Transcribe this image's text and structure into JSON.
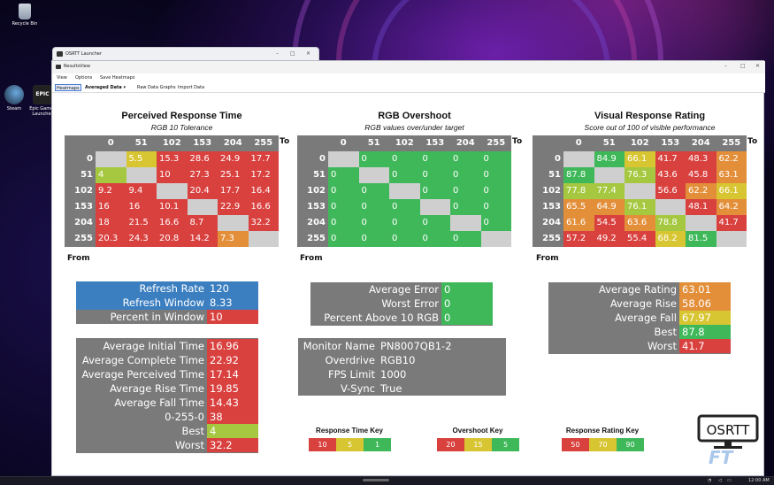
{
  "desktop": {
    "icons": [
      {
        "label": "Recycle Bin",
        "icon": "recycle-bin-icon"
      },
      {
        "label": "Steam",
        "icon": "steam-icon"
      },
      {
        "label": "Epic Games Launcher",
        "icon": "epic-games-icon"
      }
    ],
    "epic_badge": "EPIC"
  },
  "taskbar": {
    "time": "12:00 AM"
  },
  "launcher": {
    "title": "OSRTT Launcher"
  },
  "window": {
    "title": "ResultsView",
    "menu": [
      "View",
      "Options",
      "Save Heatmaps"
    ],
    "toolbar": {
      "heatmaps": "Heatmaps",
      "averaged": "Averaged Data",
      "raw_graphs": "Raw Data Graphs",
      "import": "Import Data"
    }
  },
  "colors": {
    "red": "#d9413f",
    "orange": "#e38f3a",
    "yellow": "#d8c532",
    "lightgreen": "#a5c840",
    "green": "#3fb85a",
    "gray": "#7a7a7a",
    "blue": "#3c7fc0",
    "empty": "#cfcfcf"
  },
  "axis_labels": [
    "0",
    "51",
    "102",
    "153",
    "204",
    "255"
  ],
  "axis_to": "To",
  "axis_from": "From",
  "heatmaps": [
    {
      "title": "Perceived Response Time",
      "subtitle": "RGB 10 Tolerance",
      "rows": [
        [
          null,
          "5.5",
          "15.3",
          "28.6",
          "24.9",
          "17.7"
        ],
        [
          "4",
          null,
          "10",
          "27.3",
          "25.1",
          "17.2"
        ],
        [
          "9.2",
          "9.4",
          null,
          "20.4",
          "17.7",
          "16.4"
        ],
        [
          "16",
          "16",
          "10.1",
          null,
          "22.9",
          "16.6"
        ],
        [
          "18",
          "21.5",
          "16.6",
          "8.7",
          null,
          "32.2"
        ],
        [
          "20.3",
          "24.3",
          "20.8",
          "14.2",
          "7.3",
          null
        ]
      ],
      "colors": [
        [
          "empty",
          "yellow",
          "red",
          "red",
          "red",
          "red"
        ],
        [
          "lightgreen",
          "empty",
          "red",
          "red",
          "red",
          "red"
        ],
        [
          "red",
          "red",
          "empty",
          "red",
          "red",
          "red"
        ],
        [
          "red",
          "red",
          "red",
          "empty",
          "red",
          "red"
        ],
        [
          "red",
          "red",
          "red",
          "red",
          "empty",
          "red"
        ],
        [
          "red",
          "red",
          "red",
          "red",
          "orange",
          "empty"
        ]
      ]
    },
    {
      "title": "RGB Overshoot",
      "subtitle": "RGB values over/under target",
      "rows": [
        [
          null,
          "0",
          "0",
          "0",
          "0",
          "0"
        ],
        [
          "0",
          null,
          "0",
          "0",
          "0",
          "0"
        ],
        [
          "0",
          "0",
          null,
          "0",
          "0",
          "0"
        ],
        [
          "0",
          "0",
          "0",
          null,
          "0",
          "0"
        ],
        [
          "0",
          "0",
          "0",
          "0",
          null,
          "0"
        ],
        [
          "0",
          "0",
          "0",
          "0",
          "0",
          null
        ]
      ],
      "colors": [
        [
          "empty",
          "green",
          "green",
          "green",
          "green",
          "green"
        ],
        [
          "green",
          "empty",
          "green",
          "green",
          "green",
          "green"
        ],
        [
          "green",
          "green",
          "empty",
          "green",
          "green",
          "green"
        ],
        [
          "green",
          "green",
          "green",
          "empty",
          "green",
          "green"
        ],
        [
          "green",
          "green",
          "green",
          "green",
          "empty",
          "green"
        ],
        [
          "green",
          "green",
          "green",
          "green",
          "green",
          "empty"
        ]
      ]
    },
    {
      "title": "Visual Response Rating",
      "subtitle": "Score out of 100 of visible performance",
      "rows": [
        [
          null,
          "84.9",
          "66.1",
          "41.7",
          "48.3",
          "62.2"
        ],
        [
          "87.8",
          null,
          "76.3",
          "43.6",
          "45.8",
          "63.1"
        ],
        [
          "77.8",
          "77.4",
          null,
          "56.6",
          "62.2",
          "66.1"
        ],
        [
          "65.5",
          "64.9",
          "76.1",
          null,
          "48.1",
          "64.2"
        ],
        [
          "61.6",
          "54.5",
          "63.6",
          "78.8",
          null,
          "41.7"
        ],
        [
          "57.2",
          "49.2",
          "55.4",
          "68.2",
          "81.5",
          null
        ]
      ],
      "colors": [
        [
          "empty",
          "green",
          "yellow",
          "red",
          "red",
          "orange"
        ],
        [
          "green",
          "empty",
          "lightgreen",
          "red",
          "red",
          "orange"
        ],
        [
          "lightgreen",
          "lightgreen",
          "empty",
          "red",
          "orange",
          "yellow"
        ],
        [
          "orange",
          "orange",
          "lightgreen",
          "empty",
          "red",
          "orange"
        ],
        [
          "orange",
          "red",
          "orange",
          "lightgreen",
          "empty",
          "red"
        ],
        [
          "red",
          "red",
          "red",
          "yellow",
          "green",
          "empty"
        ]
      ]
    }
  ],
  "refresh_box": [
    {
      "label": "Refresh Rate",
      "value": "120",
      "label_color": "blue",
      "value_color": "blue"
    },
    {
      "label": "Refresh Window",
      "value": "8.33",
      "label_color": "blue",
      "value_color": "blue"
    },
    {
      "label": "Percent in Window",
      "value": "10",
      "label_color": "gray",
      "value_color": "red"
    }
  ],
  "response_stats": [
    {
      "label": "Average Initial Time",
      "value": "16.96",
      "value_color": "red"
    },
    {
      "label": "Average Complete Time",
      "value": "22.92",
      "value_color": "red"
    },
    {
      "label": "Average Perceived Time",
      "value": "17.14",
      "value_color": "red"
    },
    {
      "label": "Average Rise Time",
      "value": "19.85",
      "value_color": "red"
    },
    {
      "label": "Average Fall Time",
      "value": "14.43",
      "value_color": "red"
    },
    {
      "label": "0-255-0",
      "value": "38",
      "value_color": "red"
    },
    {
      "label": "Best",
      "value": "4",
      "value_color": "lightgreen"
    },
    {
      "label": "Worst",
      "value": "32.2",
      "value_color": "red"
    }
  ],
  "error_box": [
    {
      "label": "Average Error",
      "value": "0"
    },
    {
      "label": "Worst Error",
      "value": "0"
    },
    {
      "label": "Percent Above 10 RGB",
      "value": "0"
    }
  ],
  "monitor_box": [
    {
      "label": "Monitor Name",
      "value": "PN8007QB1-2"
    },
    {
      "label": "Overdrive",
      "value": "RGB10"
    },
    {
      "label": "FPS Limit",
      "value": "1000"
    },
    {
      "label": "V-Sync",
      "value": "True"
    }
  ],
  "rating_box": [
    {
      "label": "Average Rating",
      "value": "63.01",
      "value_color": "orange"
    },
    {
      "label": "Average Rise",
      "value": "58.06",
      "value_color": "orange"
    },
    {
      "label": "Average Fall",
      "value": "67.97",
      "value_color": "yellow"
    },
    {
      "label": "Best",
      "value": "87.8",
      "value_color": "green"
    },
    {
      "label": "Worst",
      "value": "41.7",
      "value_color": "red"
    }
  ],
  "keys": [
    {
      "title": "Response Time Key",
      "cells": [
        {
          "label": "10",
          "color": "red"
        },
        {
          "label": "5",
          "color": "yellow"
        },
        {
          "label": "1",
          "color": "green"
        }
      ]
    },
    {
      "title": "Overshoot Key",
      "cells": [
        {
          "label": "20",
          "color": "red"
        },
        {
          "label": "15",
          "color": "yellow"
        },
        {
          "label": "5",
          "color": "green"
        }
      ]
    },
    {
      "title": "Response Rating Key",
      "cells": [
        {
          "label": "50",
          "color": "red"
        },
        {
          "label": "70",
          "color": "yellow"
        },
        {
          "label": "90",
          "color": "green"
        }
      ]
    }
  ],
  "logo": {
    "text": "OSRTT",
    "sub": "FT"
  }
}
